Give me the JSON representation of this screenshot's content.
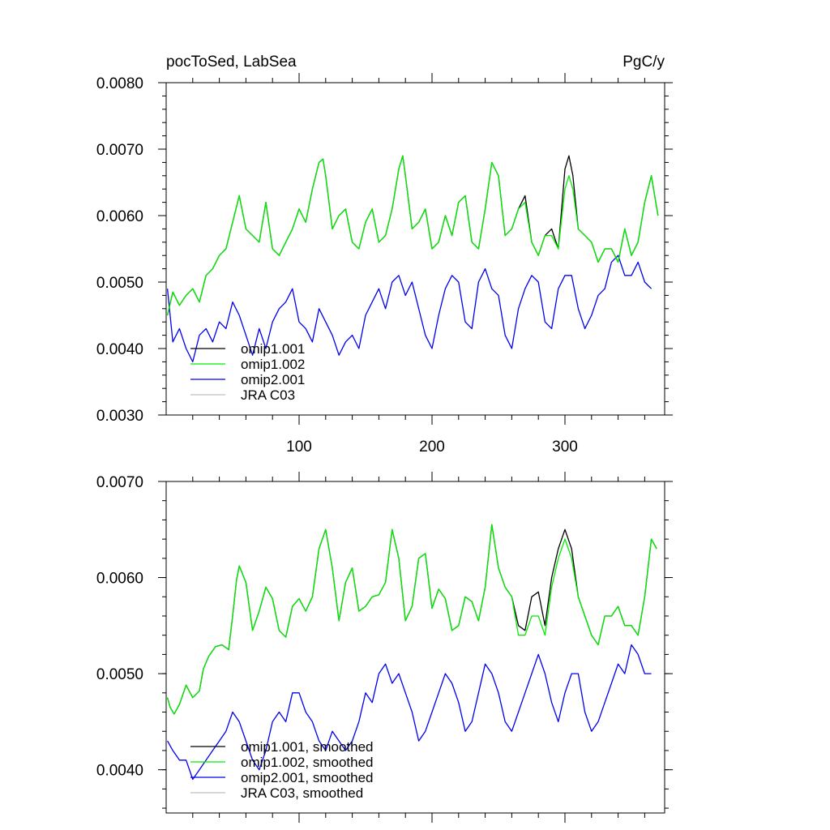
{
  "chart_data": [
    {
      "type": "line",
      "title_left": "pocToSed, LabSea",
      "title_right": "PgC/y",
      "xlim": [
        0,
        375
      ],
      "ylim": [
        0.003,
        0.008
      ],
      "x_ticks": [
        100,
        200,
        300
      ],
      "x_tick_labels": [
        "100",
        "200",
        "300"
      ],
      "y_ticks": [
        0.003,
        0.004,
        0.005,
        0.006,
        0.007,
        0.008
      ],
      "y_tick_labels": [
        "0.0030",
        "0.0040",
        "0.0050",
        "0.0060",
        "0.0070",
        "0.0080"
      ],
      "legend_position": "bottom-left",
      "series": [
        {
          "name": "omip1.001",
          "color": "#000000",
          "x": [
            1,
            5,
            10,
            15,
            20,
            25,
            30,
            35,
            40,
            45,
            50,
            55,
            60,
            65,
            70,
            75,
            80,
            85,
            90,
            95,
            100,
            105,
            110,
            115,
            118,
            120,
            125,
            130,
            135,
            140,
            145,
            150,
            155,
            160,
            165,
            170,
            175,
            178,
            180,
            185,
            190,
            195,
            200,
            205,
            210,
            215,
            220,
            225,
            230,
            235,
            240,
            245,
            250,
            255,
            260,
            265,
            270,
            275,
            280,
            285,
            290,
            295,
            300,
            303,
            306,
            310,
            315,
            320,
            325,
            330,
            335,
            340,
            345,
            350,
            355,
            360,
            365,
            370
          ],
          "y": [
            0.0045,
            0.00485,
            0.00465,
            0.0048,
            0.0049,
            0.0047,
            0.0051,
            0.0052,
            0.0054,
            0.0055,
            0.0059,
            0.0063,
            0.0058,
            0.0057,
            0.0056,
            0.0062,
            0.0055,
            0.0054,
            0.0056,
            0.0058,
            0.0061,
            0.0059,
            0.0064,
            0.0068,
            0.00685,
            0.0066,
            0.0058,
            0.006,
            0.0061,
            0.0056,
            0.0055,
            0.0059,
            0.0061,
            0.0056,
            0.0057,
            0.0061,
            0.0067,
            0.0069,
            0.0066,
            0.0058,
            0.0059,
            0.0061,
            0.0055,
            0.0056,
            0.006,
            0.0057,
            0.0062,
            0.0063,
            0.0056,
            0.0055,
            0.0061,
            0.0068,
            0.0066,
            0.0057,
            0.0058,
            0.0061,
            0.0063,
            0.0056,
            0.0054,
            0.0057,
            0.0058,
            0.0055,
            0.0067,
            0.0069,
            0.0066,
            0.0058,
            0.0057,
            0.0056,
            0.0053,
            0.0055,
            0.0055,
            0.0053,
            0.0058,
            0.0054,
            0.0056,
            0.0062,
            0.0066,
            0.006
          ]
        },
        {
          "name": "omip1.002",
          "color": "#00ee00",
          "x": [
            1,
            5,
            10,
            15,
            20,
            25,
            30,
            35,
            40,
            45,
            50,
            55,
            60,
            65,
            70,
            75,
            80,
            85,
            90,
            95,
            100,
            105,
            110,
            115,
            118,
            120,
            125,
            130,
            135,
            140,
            145,
            150,
            155,
            160,
            165,
            170,
            175,
            178,
            180,
            185,
            190,
            195,
            200,
            205,
            210,
            215,
            220,
            225,
            230,
            235,
            240,
            245,
            250,
            255,
            260,
            265,
            270,
            275,
            280,
            285,
            290,
            295,
            300,
            303,
            306,
            310,
            315,
            320,
            325,
            330,
            335,
            340,
            345,
            350,
            355,
            360,
            365,
            370
          ],
          "y": [
            0.0045,
            0.00485,
            0.00465,
            0.0048,
            0.0049,
            0.0047,
            0.0051,
            0.0052,
            0.0054,
            0.0055,
            0.0059,
            0.0063,
            0.0058,
            0.0057,
            0.0056,
            0.0062,
            0.0055,
            0.0054,
            0.0056,
            0.0058,
            0.0061,
            0.0059,
            0.0064,
            0.0068,
            0.00685,
            0.0066,
            0.0058,
            0.006,
            0.0061,
            0.0056,
            0.0055,
            0.0059,
            0.0061,
            0.0056,
            0.0057,
            0.0061,
            0.0067,
            0.0069,
            0.0066,
            0.0058,
            0.0059,
            0.0061,
            0.0055,
            0.0056,
            0.006,
            0.0057,
            0.0062,
            0.0063,
            0.0056,
            0.0055,
            0.0061,
            0.0068,
            0.0066,
            0.0057,
            0.0058,
            0.0061,
            0.0062,
            0.0056,
            0.0054,
            0.0057,
            0.0057,
            0.0055,
            0.0064,
            0.0066,
            0.0064,
            0.0058,
            0.0057,
            0.0056,
            0.0053,
            0.0055,
            0.0055,
            0.0053,
            0.0058,
            0.0054,
            0.0056,
            0.0062,
            0.0066,
            0.006
          ]
        },
        {
          "name": "omip2.001",
          "color": "#0000ee",
          "x": [
            1,
            5,
            10,
            15,
            20,
            25,
            30,
            35,
            40,
            45,
            50,
            55,
            60,
            65,
            70,
            75,
            80,
            85,
            90,
            95,
            100,
            105,
            110,
            115,
            120,
            125,
            130,
            135,
            140,
            145,
            150,
            155,
            160,
            165,
            170,
            175,
            180,
            185,
            190,
            195,
            200,
            205,
            210,
            215,
            220,
            225,
            230,
            235,
            240,
            245,
            250,
            255,
            260,
            265,
            270,
            275,
            280,
            285,
            290,
            295,
            300,
            305,
            310,
            315,
            320,
            325,
            330,
            335,
            340,
            345,
            350,
            355,
            360,
            365
          ],
          "y": [
            0.0049,
            0.0041,
            0.0043,
            0.004,
            0.0038,
            0.0042,
            0.0043,
            0.0041,
            0.0044,
            0.0043,
            0.0047,
            0.0045,
            0.0042,
            0.0039,
            0.0043,
            0.004,
            0.0044,
            0.0046,
            0.0047,
            0.0049,
            0.0044,
            0.0043,
            0.0041,
            0.0046,
            0.0044,
            0.0042,
            0.0039,
            0.0041,
            0.0042,
            0.004,
            0.0045,
            0.0047,
            0.0049,
            0.0046,
            0.005,
            0.0051,
            0.0048,
            0.005,
            0.0046,
            0.0042,
            0.004,
            0.0045,
            0.0049,
            0.0051,
            0.005,
            0.0044,
            0.0043,
            0.005,
            0.0052,
            0.0049,
            0.0048,
            0.0042,
            0.004,
            0.0046,
            0.0049,
            0.0051,
            0.005,
            0.0044,
            0.0043,
            0.0049,
            0.0051,
            0.0051,
            0.0046,
            0.0043,
            0.0045,
            0.0048,
            0.0049,
            0.0053,
            0.0054,
            0.0051,
            0.0051,
            0.0053,
            0.005,
            0.0049
          ]
        },
        {
          "name": "JRA C03",
          "color": "#bfbfbf",
          "x": [],
          "y": []
        }
      ]
    },
    {
      "type": "line",
      "xlim": [
        0,
        375
      ],
      "ylim": [
        0.00355,
        0.007
      ],
      "x_ticks": [
        100,
        200,
        300
      ],
      "y_ticks": [
        0.004,
        0.005,
        0.006,
        0.007
      ],
      "y_tick_labels": [
        "0.0040",
        "0.0050",
        "0.0060",
        "0.0070"
      ],
      "legend_position": "bottom-left",
      "series": [
        {
          "name": "omip1.001, smoothed",
          "color": "#000000",
          "x": [
            1,
            3,
            6,
            10,
            15,
            20,
            25,
            28,
            32,
            37,
            42,
            47,
            50,
            53,
            55,
            60,
            65,
            70,
            75,
            80,
            85,
            90,
            95,
            100,
            105,
            110,
            115,
            120,
            125,
            130,
            135,
            140,
            145,
            150,
            155,
            160,
            165,
            170,
            175,
            180,
            185,
            190,
            195,
            200,
            205,
            210,
            215,
            220,
            225,
            230,
            235,
            240,
            245,
            250,
            255,
            260,
            265,
            270,
            275,
            280,
            285,
            290,
            295,
            300,
            305,
            310,
            315,
            320,
            325,
            330,
            335,
            340,
            345,
            350,
            355,
            360,
            365,
            369
          ],
          "y": [
            0.00475,
            0.00465,
            0.00458,
            0.00468,
            0.00488,
            0.00475,
            0.00482,
            0.00505,
            0.00518,
            0.00528,
            0.0053,
            0.00525,
            0.0056,
            0.00598,
            0.00612,
            0.00595,
            0.00545,
            0.00565,
            0.0059,
            0.00578,
            0.00545,
            0.00538,
            0.0057,
            0.00578,
            0.00565,
            0.0058,
            0.0063,
            0.0065,
            0.0061,
            0.00555,
            0.00595,
            0.0061,
            0.00565,
            0.0057,
            0.0058,
            0.00582,
            0.00595,
            0.0065,
            0.0062,
            0.00555,
            0.0057,
            0.0062,
            0.00625,
            0.00568,
            0.00588,
            0.00578,
            0.00545,
            0.0055,
            0.0058,
            0.00575,
            0.00555,
            0.0059,
            0.00655,
            0.0061,
            0.0059,
            0.0058,
            0.0055,
            0.00545,
            0.0058,
            0.00585,
            0.0055,
            0.006,
            0.0063,
            0.0065,
            0.0063,
            0.0058,
            0.0056,
            0.0054,
            0.0053,
            0.0056,
            0.0056,
            0.0057,
            0.0055,
            0.0055,
            0.0054,
            0.0058,
            0.0064,
            0.0063
          ]
        },
        {
          "name": "omip1.002, smoothed",
          "color": "#00ee00",
          "x": [
            1,
            3,
            6,
            10,
            15,
            20,
            25,
            28,
            32,
            37,
            42,
            47,
            50,
            53,
            55,
            60,
            65,
            70,
            75,
            80,
            85,
            90,
            95,
            100,
            105,
            110,
            115,
            120,
            125,
            130,
            135,
            140,
            145,
            150,
            155,
            160,
            165,
            170,
            175,
            180,
            185,
            190,
            195,
            200,
            205,
            210,
            215,
            220,
            225,
            230,
            235,
            240,
            245,
            250,
            255,
            260,
            265,
            270,
            275,
            280,
            285,
            290,
            295,
            300,
            305,
            310,
            315,
            320,
            325,
            330,
            335,
            340,
            345,
            350,
            355,
            360,
            365,
            369
          ],
          "y": [
            0.00475,
            0.00465,
            0.00458,
            0.00468,
            0.00488,
            0.00475,
            0.00482,
            0.00505,
            0.00518,
            0.00528,
            0.0053,
            0.00525,
            0.0056,
            0.00598,
            0.00612,
            0.00595,
            0.00545,
            0.00565,
            0.0059,
            0.00578,
            0.00545,
            0.00538,
            0.0057,
            0.00578,
            0.00565,
            0.0058,
            0.0063,
            0.0065,
            0.0061,
            0.00555,
            0.00595,
            0.0061,
            0.00565,
            0.0057,
            0.0058,
            0.00582,
            0.00595,
            0.0065,
            0.0062,
            0.00555,
            0.0057,
            0.0062,
            0.00625,
            0.00568,
            0.00588,
            0.00578,
            0.00545,
            0.0055,
            0.0058,
            0.00575,
            0.00555,
            0.0059,
            0.00655,
            0.0061,
            0.0059,
            0.0058,
            0.0054,
            0.0054,
            0.0056,
            0.0056,
            0.0054,
            0.0059,
            0.0062,
            0.0064,
            0.0062,
            0.0058,
            0.0056,
            0.0054,
            0.0053,
            0.0056,
            0.0056,
            0.0057,
            0.0055,
            0.0055,
            0.0054,
            0.0058,
            0.0064,
            0.0063
          ]
        },
        {
          "name": "omip2.001, smoothed",
          "color": "#0000ee",
          "x": [
            1,
            5,
            10,
            15,
            20,
            25,
            30,
            35,
            40,
            45,
            50,
            55,
            60,
            65,
            70,
            75,
            80,
            85,
            90,
            95,
            100,
            105,
            110,
            115,
            120,
            125,
            130,
            135,
            140,
            145,
            150,
            155,
            160,
            165,
            170,
            175,
            180,
            185,
            190,
            195,
            200,
            205,
            210,
            215,
            220,
            225,
            230,
            235,
            240,
            245,
            250,
            255,
            260,
            265,
            270,
            275,
            280,
            285,
            290,
            295,
            300,
            305,
            310,
            315,
            320,
            325,
            330,
            335,
            340,
            345,
            350,
            355,
            360,
            365
          ],
          "y": [
            0.0043,
            0.0042,
            0.0041,
            0.0041,
            0.0039,
            0.004,
            0.0041,
            0.0042,
            0.0043,
            0.0044,
            0.0046,
            0.0045,
            0.0043,
            0.0041,
            0.004,
            0.0042,
            0.0045,
            0.0046,
            0.0045,
            0.0048,
            0.0048,
            0.0046,
            0.0045,
            0.0043,
            0.0042,
            0.0044,
            0.0043,
            0.0042,
            0.0043,
            0.0045,
            0.0048,
            0.0047,
            0.005,
            0.0051,
            0.0049,
            0.005,
            0.0048,
            0.0046,
            0.0043,
            0.0044,
            0.0046,
            0.0048,
            0.005,
            0.0049,
            0.0047,
            0.0044,
            0.0045,
            0.0048,
            0.0051,
            0.005,
            0.0048,
            0.0045,
            0.0044,
            0.0046,
            0.0048,
            0.005,
            0.0052,
            0.005,
            0.0047,
            0.0045,
            0.0048,
            0.005,
            0.005,
            0.0046,
            0.0044,
            0.0045,
            0.0047,
            0.0049,
            0.0051,
            0.005,
            0.0053,
            0.0052,
            0.005,
            0.005
          ]
        },
        {
          "name": "JRA C03, smoothed",
          "color": "#bfbfbf",
          "x": [],
          "y": []
        }
      ]
    }
  ]
}
